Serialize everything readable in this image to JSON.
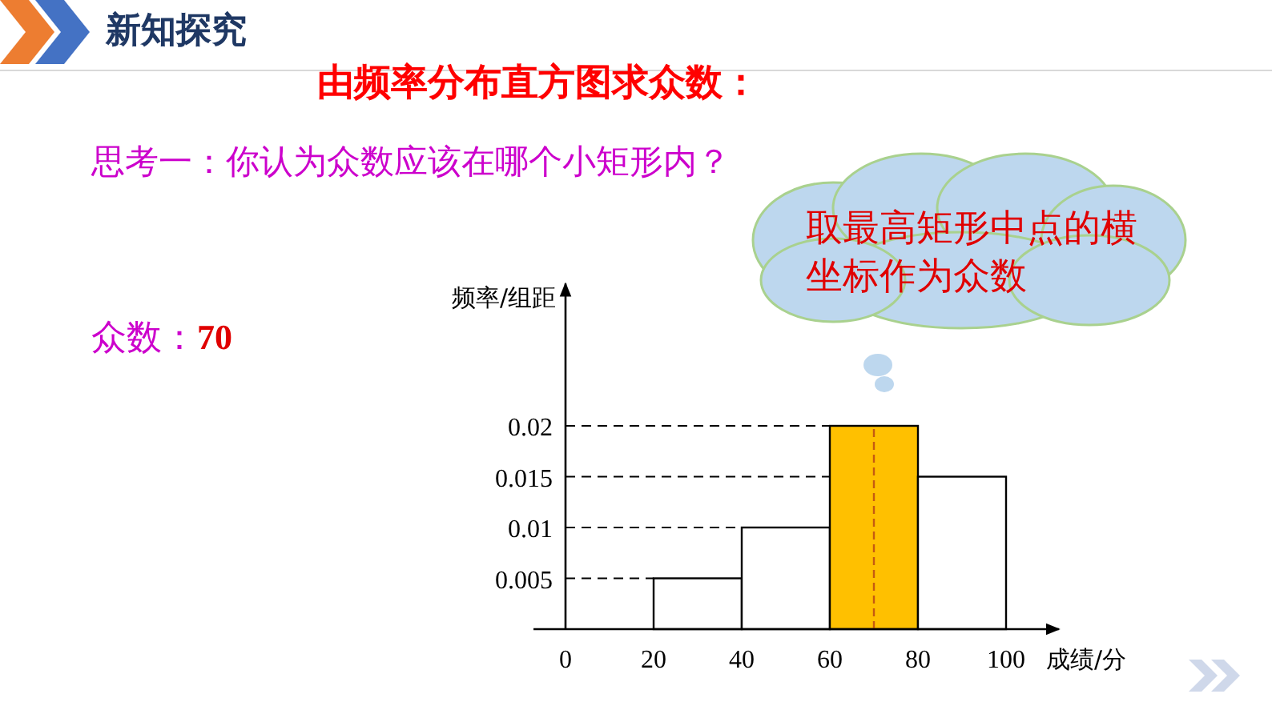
{
  "chart_data": {
    "type": "histogram",
    "title": "新知探究",
    "subtitle": "由频率分布直方图求众数：",
    "xlabel": "成绩/分",
    "ylabel": "频率/组距",
    "bins": [
      20,
      40,
      60,
      80,
      100
    ],
    "values": [
      0.005,
      0.01,
      0.02,
      0.015
    ],
    "colors": [
      "#ffffff",
      "#ffffff",
      "#ffc000",
      "#ffffff"
    ],
    "xlim": [
      0,
      112
    ],
    "ylim": [
      0,
      0.034
    ],
    "xticks": [
      0,
      20,
      40,
      60,
      80,
      100
    ],
    "yticks": [
      0.005,
      0.01,
      0.015,
      0.02
    ],
    "ref_lines": [
      {
        "axis": "x",
        "value": 70,
        "color": "#c55a11",
        "line_style": "dashed"
      },
      {
        "axis": "y",
        "value": 0.005,
        "color": "#000000",
        "line_style": "dashed"
      },
      {
        "axis": "y",
        "value": 0.01,
        "color": "#000000",
        "line_style": "dashed"
      },
      {
        "axis": "y",
        "value": 0.015,
        "color": "#000000",
        "line_style": "dashed"
      },
      {
        "axis": "y",
        "value": 0.02,
        "color": "#000000",
        "line_style": "dashed"
      }
    ],
    "annotations": [
      "思考一：你认为众数应该在哪个小矩形内？",
      "众数：**70**",
      "取最高矩形中点的横坐标作为众数"
    ]
  }
}
